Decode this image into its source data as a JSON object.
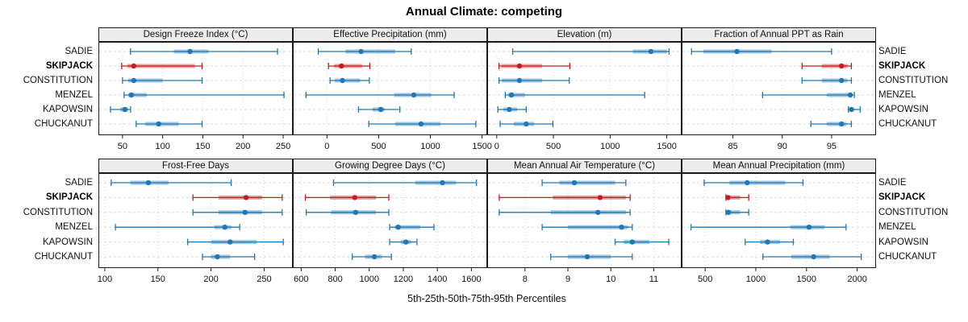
{
  "title": "Annual Climate: competing",
  "caption": "5th-25th-50th-75th-95th Percentiles",
  "sites": [
    "SADIE",
    "SKIPJACK",
    "CONSTITUTION",
    "MENZEL",
    "KAPOWSIN",
    "CHUCKANUT"
  ],
  "highlight_site": "SKIPJACK",
  "colors": {
    "series_normal": "#1F77B4",
    "series_highlight": "#CB181D",
    "strip_bg": "#ECECEC",
    "grid": "#D9D9D9",
    "border": "#1a1a1a"
  },
  "chart_data": {
    "type": "interval-dotplot",
    "percentiles_shown": [
      "5th",
      "25th",
      "50th",
      "75th",
      "95th"
    ],
    "layout_hint": "2 rows x 4 columns trellis; thin line = 5th-95th with end caps; translucent band = 25th-75th; dot = median; horizontal dashed gridlines per site; vertical dotted gridlines per tick",
    "panels": [
      {
        "title": "Design Freeze Index (°C)",
        "ticks": [
          50,
          100,
          150,
          200,
          250
        ],
        "xlim": [
          20,
          262
        ],
        "values": [
          [
            60,
            114,
            134,
            157,
            243
          ],
          [
            49,
            56,
            64,
            140,
            149
          ],
          [
            50,
            57,
            64,
            100,
            149
          ],
          [
            52,
            57,
            61,
            80,
            251
          ],
          [
            35,
            47,
            53,
            57,
            60
          ],
          [
            67,
            78,
            95,
            120,
            149
          ]
        ]
      },
      {
        "title": "Effective Precipitation (mm)",
        "ticks": [
          0,
          500,
          1000,
          1500
        ],
        "xlim": [
          -330,
          1550
        ],
        "values": [
          [
            -84,
            180,
            330,
            660,
            815
          ],
          [
            15,
            70,
            140,
            340,
            415
          ],
          [
            30,
            75,
            150,
            320,
            410
          ],
          [
            -203,
            650,
            840,
            1010,
            1230
          ],
          [
            305,
            440,
            520,
            560,
            705
          ],
          [
            405,
            660,
            910,
            1100,
            1440
          ]
        ]
      },
      {
        "title": "Elevation (m)",
        "ticks": [
          0,
          500,
          1000,
          1500
        ],
        "xlim": [
          -84,
          1631
        ],
        "values": [
          [
            140,
            1200,
            1360,
            1500,
            1520
          ],
          [
            20,
            40,
            200,
            400,
            645
          ],
          [
            20,
            45,
            200,
            400,
            640
          ],
          [
            75,
            100,
            130,
            250,
            1305
          ],
          [
            10,
            60,
            110,
            180,
            260
          ],
          [
            30,
            150,
            260,
            330,
            495
          ]
        ]
      },
      {
        "title": "Fraction of Annual PPT as Rain",
        "ticks": [
          85,
          90,
          95
        ],
        "xlim": [
          79.8,
          99.5
        ],
        "values": [
          [
            80.8,
            82.0,
            85.4,
            88.9,
            95.0
          ],
          [
            92.0,
            94.0,
            96.0,
            96.6,
            97.0
          ],
          [
            92.0,
            94.0,
            96.0,
            96.6,
            97.0
          ],
          [
            88.0,
            94.5,
            96.9,
            97.0,
            97.3
          ],
          [
            96.7,
            96.9,
            97.0,
            97.3,
            97.9
          ],
          [
            92.9,
            94.5,
            96.0,
            96.5,
            97.0
          ]
        ]
      },
      {
        "title": "Frost-Free Days",
        "ticks": [
          100,
          150,
          200,
          250
        ],
        "xlim": [
          94,
          277
        ],
        "values": [
          [
            106,
            124,
            141,
            160,
            219
          ],
          [
            183,
            207,
            233,
            248,
            267
          ],
          [
            183,
            207,
            232,
            248,
            267
          ],
          [
            110,
            203,
            213,
            219,
            227
          ],
          [
            178,
            200,
            218,
            243,
            268
          ],
          [
            192,
            200,
            206,
            218,
            241
          ]
        ]
      },
      {
        "title": "Growing Degree Days (°C)",
        "ticks": [
          600,
          800,
          1000,
          1200,
          1400,
          1600
        ],
        "xlim": [
          551,
          1693
        ],
        "values": [
          [
            790,
            1270,
            1430,
            1510,
            1630
          ],
          [
            625,
            770,
            915,
            1040,
            1115
          ],
          [
            630,
            775,
            920,
            1040,
            1115
          ],
          [
            1120,
            1150,
            1170,
            1300,
            1380
          ],
          [
            1120,
            1185,
            1215,
            1245,
            1280
          ],
          [
            900,
            975,
            1030,
            1075,
            1130
          ]
        ]
      },
      {
        "title": "Mean Annual Air Temperature (°C)",
        "ticks": [
          8,
          9,
          10,
          11
        ],
        "xlim": [
          7.12,
          11.65
        ],
        "values": [
          [
            8.4,
            8.8,
            9.15,
            10.1,
            10.35
          ],
          [
            7.4,
            8.65,
            9.75,
            10.35,
            10.45
          ],
          [
            7.4,
            8.6,
            9.7,
            10.35,
            10.45
          ],
          [
            8.4,
            9.0,
            10.25,
            10.4,
            10.5
          ],
          [
            10.1,
            10.3,
            10.5,
            10.9,
            11.35
          ],
          [
            8.6,
            9.0,
            9.45,
            10.0,
            10.5
          ]
        ]
      },
      {
        "title": "Mean Annual Precipitation (mm)",
        "ticks": [
          500,
          1000,
          1500,
          2000
        ],
        "xlim": [
          268,
          2186
        ],
        "values": [
          [
            490,
            740,
            915,
            1290,
            1465
          ],
          [
            705,
            715,
            725,
            845,
            930
          ],
          [
            705,
            715,
            730,
            845,
            930
          ],
          [
            360,
            1340,
            1525,
            1680,
            1890
          ],
          [
            895,
            1040,
            1115,
            1240,
            1370
          ],
          [
            1070,
            1350,
            1570,
            1730,
            2040
          ]
        ]
      }
    ]
  }
}
